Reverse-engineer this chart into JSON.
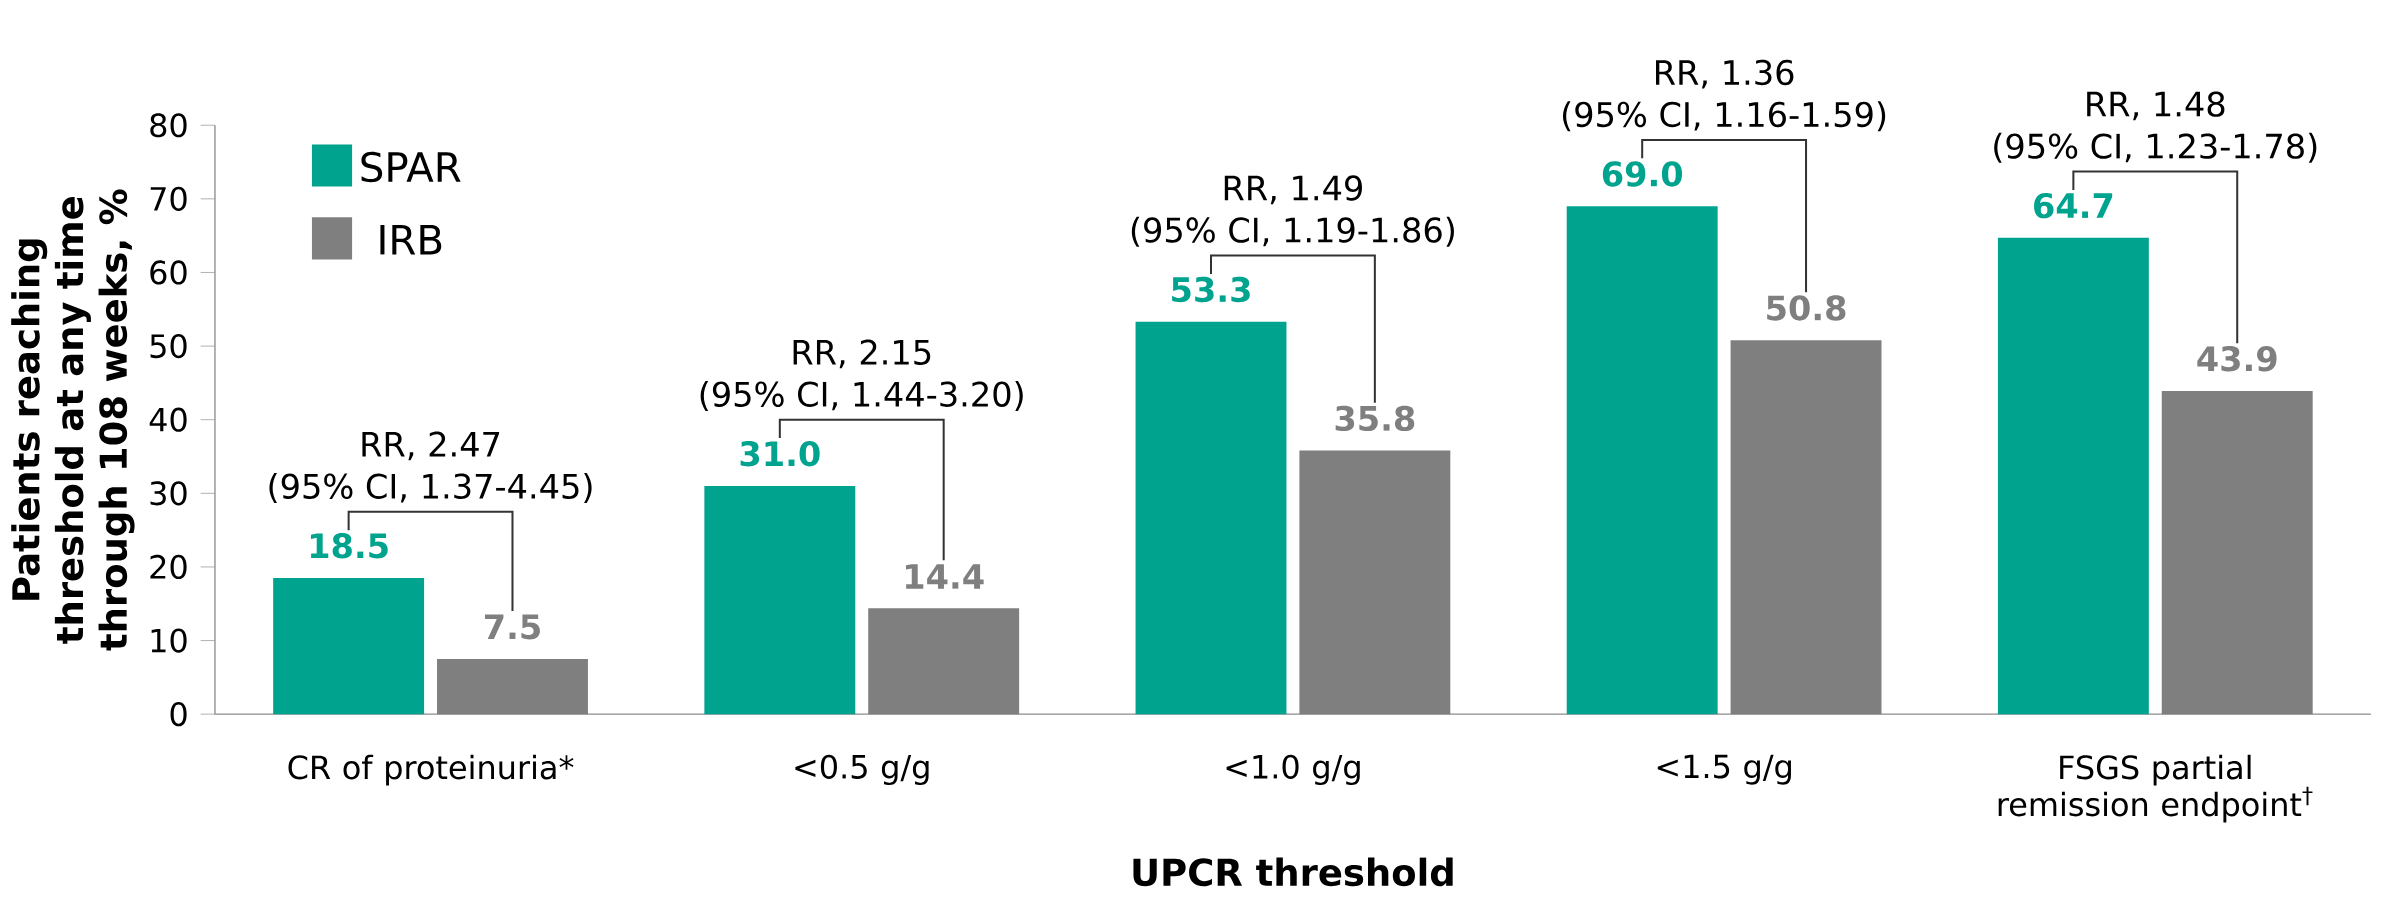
{
  "chart_data": {
    "type": "bar",
    "xlabel": "UPCR threshold",
    "ylabel": "Patients reaching threshold at any time through 108 weeks, %",
    "categories": [
      "CR of proteinuria*",
      "<0.5 g/g",
      "<1.0 g/g",
      "<1.5 g/g",
      "FSGS partial remission endpoint$^{†}$"
    ],
    "series": [
      {
        "name": "SPAR",
        "color": "#00a38e",
        "values": [
          18.5,
          31.0,
          53.3,
          69.0,
          64.7
        ],
        "value_labels": [
          "18.5",
          "31.0",
          "53.3",
          "69.0",
          "64.7"
        ]
      },
      {
        "name": "IRB",
        "color": "#7f7f7f",
        "values": [
          7.5,
          14.4,
          35.8,
          50.8,
          43.9
        ],
        "value_labels": [
          "7.5",
          "14.4",
          "35.8",
          "50.8",
          "43.9"
        ]
      }
    ],
    "annotations": [
      "RR, 2.47",
      "(95% CI, 1.37-4.45)",
      "RR, 2.15",
      "(95% CI, 1.44-3.20)",
      "RR, 1.49",
      "(95% CI, 1.19-1.86)",
      "RR, 1.36",
      "(95% CI, 1.16-1.59)",
      "RR, 1.48",
      "(95% CI, 1.23-1.78)"
    ],
    "ylim": [
      0,
      80
    ],
    "yticks": [
      0,
      10,
      20,
      30,
      40,
      50,
      60,
      70,
      80
    ],
    "grid": false,
    "legend": "top left"
  }
}
